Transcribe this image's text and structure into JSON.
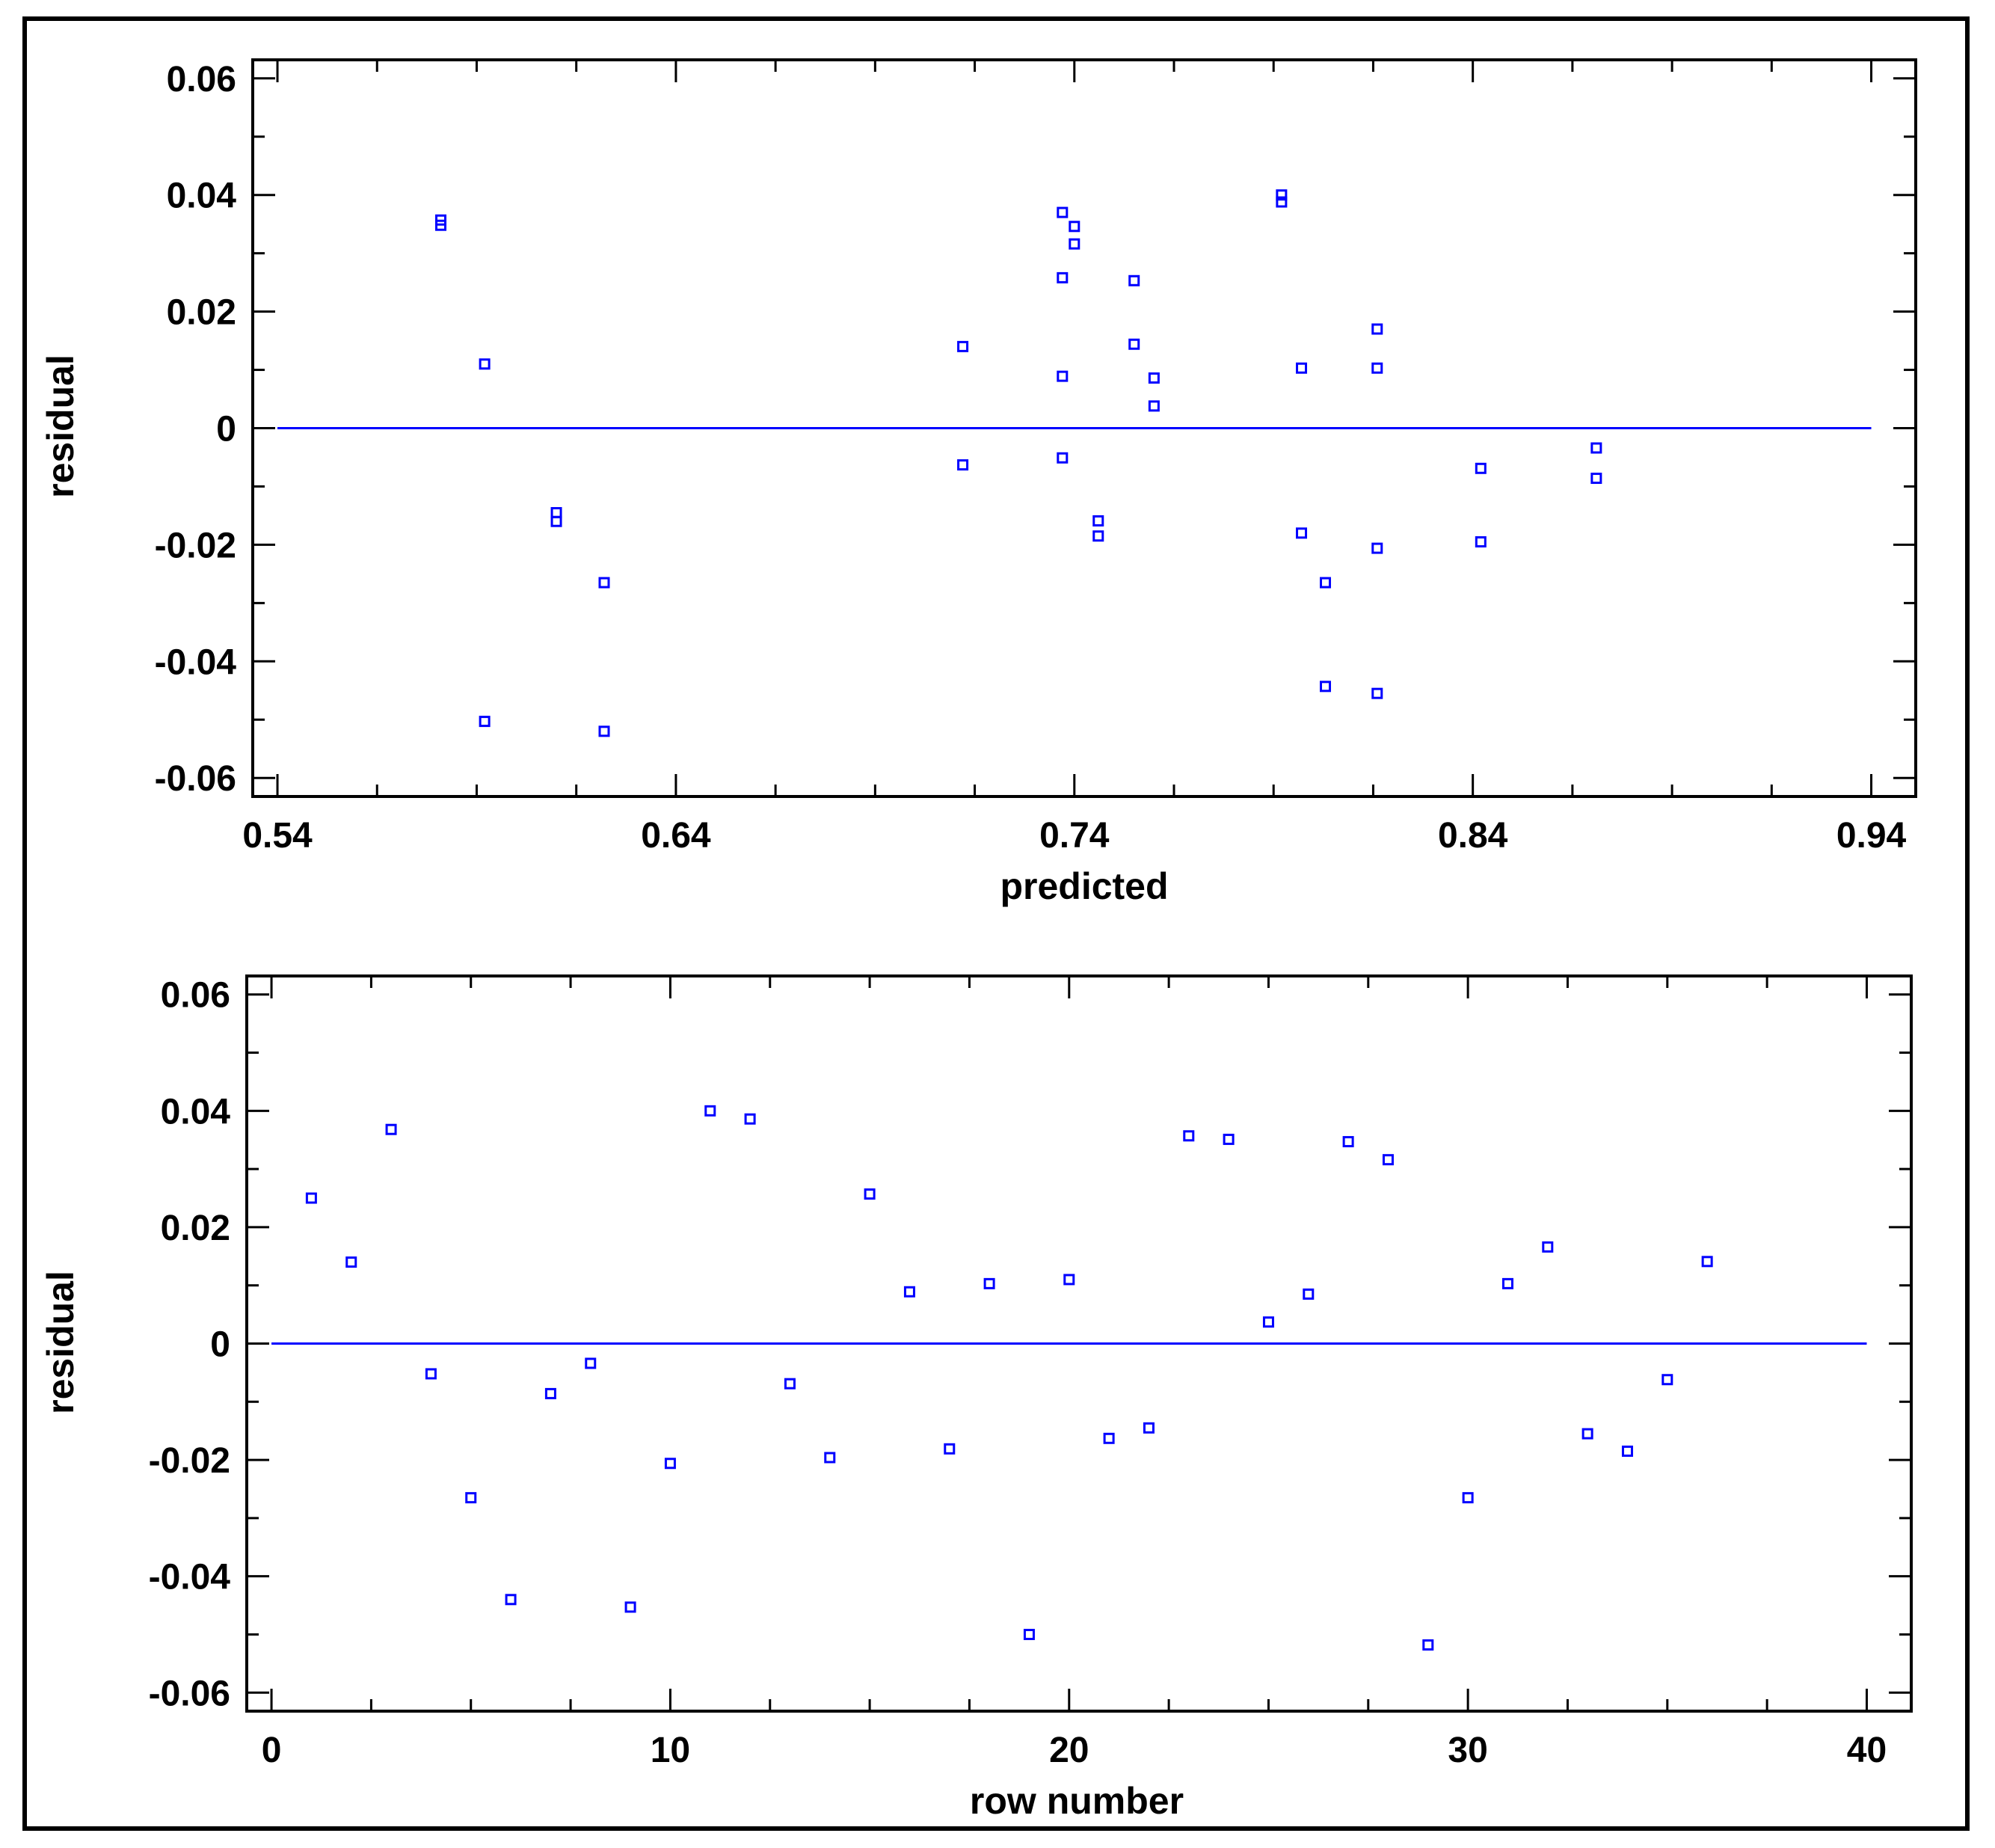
{
  "colors": {
    "marker": "#0000ff",
    "refline": "#0000ff",
    "axis": "#000000",
    "background": "#ffffff"
  },
  "chart_data": [
    {
      "type": "scatter",
      "title": "",
      "xlabel": "predicted",
      "ylabel": "residual",
      "xlim": [
        0.54,
        0.94
      ],
      "ylim": [
        -0.06,
        0.06
      ],
      "xticks": [
        "0.54",
        "0.64",
        "0.74",
        "0.84",
        "0.94"
      ],
      "yticks": [
        "0.06",
        "0.04",
        "0.02",
        "0",
        "-0.02",
        "-0.04",
        "-0.06"
      ],
      "grid": false,
      "reference_line_y": 0,
      "marker": "open-square",
      "points": [
        {
          "x": 0.581,
          "y": 0.0357
        },
        {
          "x": 0.581,
          "y": 0.0348
        },
        {
          "x": 0.592,
          "y": 0.011
        },
        {
          "x": 0.592,
          "y": -0.0503
        },
        {
          "x": 0.61,
          "y": -0.0145
        },
        {
          "x": 0.61,
          "y": -0.016
        },
        {
          "x": 0.622,
          "y": -0.0265
        },
        {
          "x": 0.622,
          "y": -0.052
        },
        {
          "x": 0.712,
          "y": 0.014
        },
        {
          "x": 0.712,
          "y": -0.0063
        },
        {
          "x": 0.737,
          "y": 0.037
        },
        {
          "x": 0.737,
          "y": 0.0258
        },
        {
          "x": 0.737,
          "y": 0.0089
        },
        {
          "x": 0.737,
          "y": -0.0051
        },
        {
          "x": 0.74,
          "y": 0.0346
        },
        {
          "x": 0.74,
          "y": 0.0316
        },
        {
          "x": 0.746,
          "y": -0.0159
        },
        {
          "x": 0.746,
          "y": -0.0185
        },
        {
          "x": 0.755,
          "y": 0.0253
        },
        {
          "x": 0.755,
          "y": 0.0144
        },
        {
          "x": 0.76,
          "y": 0.0086
        },
        {
          "x": 0.76,
          "y": 0.0038
        },
        {
          "x": 0.792,
          "y": 0.04
        },
        {
          "x": 0.792,
          "y": 0.0388
        },
        {
          "x": 0.797,
          "y": 0.0103
        },
        {
          "x": 0.797,
          "y": -0.018
        },
        {
          "x": 0.803,
          "y": -0.0265
        },
        {
          "x": 0.803,
          "y": -0.0443
        },
        {
          "x": 0.816,
          "y": 0.017
        },
        {
          "x": 0.816,
          "y": 0.0103
        },
        {
          "x": 0.816,
          "y": -0.0206
        },
        {
          "x": 0.816,
          "y": -0.0455
        },
        {
          "x": 0.842,
          "y": -0.0069
        },
        {
          "x": 0.842,
          "y": -0.0195
        },
        {
          "x": 0.871,
          "y": -0.0034
        },
        {
          "x": 0.871,
          "y": -0.0086
        }
      ]
    },
    {
      "type": "scatter",
      "title": "",
      "xlabel": "row number",
      "ylabel": "residual",
      "xlim": [
        0,
        40
      ],
      "ylim": [
        -0.06,
        0.06
      ],
      "xticks": [
        "0",
        "10",
        "20",
        "30",
        "40"
      ],
      "yticks": [
        "0.06",
        "0.04",
        "0.02",
        "0",
        "-0.02",
        "-0.04",
        "-0.06"
      ],
      "grid": false,
      "reference_line_y": 0,
      "marker": "open-square",
      "points": [
        {
          "x": 1,
          "y": 0.025
        },
        {
          "x": 2,
          "y": 0.014
        },
        {
          "x": 3,
          "y": 0.0368
        },
        {
          "x": 4,
          "y": -0.0052
        },
        {
          "x": 5,
          "y": -0.0265
        },
        {
          "x": 6,
          "y": -0.044
        },
        {
          "x": 7,
          "y": -0.0086
        },
        {
          "x": 8,
          "y": -0.0034
        },
        {
          "x": 9,
          "y": -0.0453
        },
        {
          "x": 10,
          "y": -0.0206
        },
        {
          "x": 11,
          "y": 0.04
        },
        {
          "x": 12,
          "y": 0.0386
        },
        {
          "x": 13,
          "y": -0.0069
        },
        {
          "x": 14,
          "y": -0.0196
        },
        {
          "x": 15,
          "y": 0.0257
        },
        {
          "x": 16,
          "y": 0.0089
        },
        {
          "x": 17,
          "y": -0.0181
        },
        {
          "x": 18,
          "y": 0.0103
        },
        {
          "x": 19,
          "y": -0.05
        },
        {
          "x": 20,
          "y": 0.011
        },
        {
          "x": 21,
          "y": -0.0163
        },
        {
          "x": 22,
          "y": -0.0145
        },
        {
          "x": 23,
          "y": 0.0357
        },
        {
          "x": 24,
          "y": 0.0351
        },
        {
          "x": 25,
          "y": 0.0037
        },
        {
          "x": 26,
          "y": 0.0085
        },
        {
          "x": 27,
          "y": 0.0347
        },
        {
          "x": 28,
          "y": 0.0316
        },
        {
          "x": 29,
          "y": -0.0518
        },
        {
          "x": 30,
          "y": -0.0265
        },
        {
          "x": 31,
          "y": 0.0103
        },
        {
          "x": 32,
          "y": 0.0166
        },
        {
          "x": 33,
          "y": -0.0155
        },
        {
          "x": 34,
          "y": -0.0185
        },
        {
          "x": 35,
          "y": -0.0062
        },
        {
          "x": 36,
          "y": 0.0141
        }
      ]
    }
  ]
}
